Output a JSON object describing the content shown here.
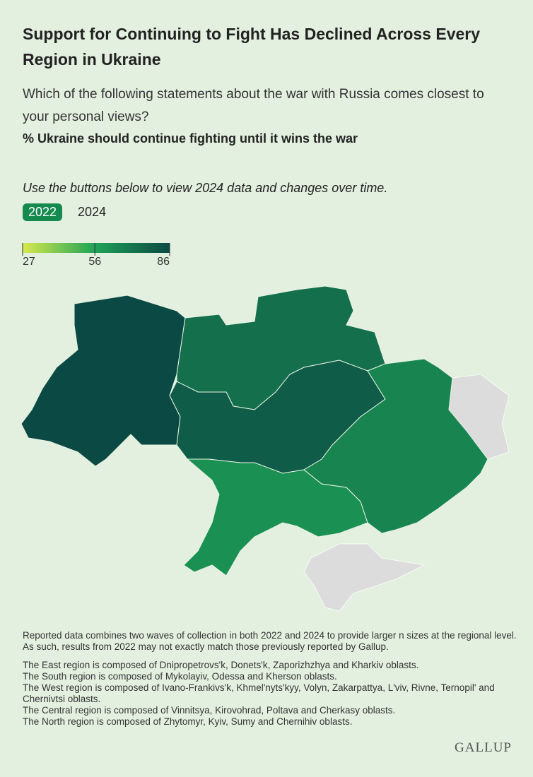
{
  "header": {
    "title": "Support for Continuing to Fight Has Declined Across Every Region in Ukraine",
    "subtitle": "Which of the following statements about the war with Russia comes closest to your personal views?",
    "measure": "% Ukraine should continue fighting until it wins the war"
  },
  "instruction": "Use the buttons below to view 2024 data and changes over time.",
  "buttons": [
    "2022",
    "2024"
  ],
  "chart_data": {
    "type": "choropleth",
    "values": [
      86,
      73,
      80,
      62,
      66
    ],
    "scale": {
      "ticks": [
        27,
        56,
        86
      ],
      "colors": [
        "#d6ea4c",
        "#1fa257",
        "#0b4a44"
      ]
    },
    "missing_color": "#dcdcdc"
  },
  "notes": [
    "Reported data combines two waves of collection in both 2022 and 2024 to provide larger n sizes at the regional level. As such, results from 2022 may not exactly match those previously reported by Gallup.",
    "The East region is composed of Dnipropetrovs'k, Donets'k, Zaporizhzhya and Kharkiv oblasts.",
    "The South region is composed of Mykolayiv, Odessa and Kherson oblasts.",
    "The West region is composed of Ivano-Frankivs'k, Khmel'nyts'kyy, Volyn, Zakarpattya, L'viv, Rivne, Ternopil' and Chernivtsi oblasts.",
    "The Central region is composed of Vinnitsya, Kirovohrad, Poltava and Cherkasy oblasts.",
    "The North region is composed of Zhytomyr, Kyiv, Sumy and Chernihiv oblasts."
  ],
  "logo": "GALLUP"
}
